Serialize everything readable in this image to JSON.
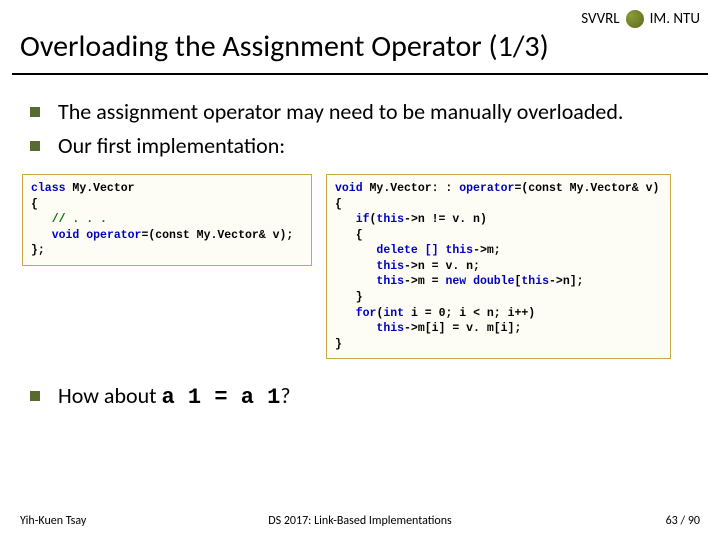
{
  "header": {
    "left_label": "SVVRL",
    "right_label": "IM. NTU"
  },
  "title": "Overloading the Assignment Operator (1/3)",
  "bullets": {
    "b1": "The assignment operator may need to be manually overloaded.",
    "b2": "Our first implementation:"
  },
  "code_left": {
    "line1_kw": "class",
    "line1_rest": " My.Vector",
    "line2": "{",
    "line3_pre": "   ",
    "line3_comment": "// . . .",
    "line4_pre": "   ",
    "line4_kw1": "void",
    "line4_mid": " ",
    "line4_kw2": "operator",
    "line4_rest": "=(const My.Vector& v);",
    "line5": "};"
  },
  "code_right": {
    "l1_kw1": "void",
    "l1_mid1": " My.Vector: : ",
    "l1_kw2": "operator",
    "l1_rest": "=(const My.Vector& v)",
    "l2": "{",
    "l3_pre": "   ",
    "l3_kw": "if",
    "l3_mid": "(",
    "l3_kw2": "this",
    "l3_rest": "->n != v. n)",
    "l4": "   {",
    "l5_pre": "      ",
    "l5_kw1": "delete []",
    "l5_mid": " ",
    "l5_kw2": "this",
    "l5_rest": "->m;",
    "l6_pre": "      ",
    "l6_kw": "this",
    "l6_rest": "->n = v. n;",
    "l7_pre": "      ",
    "l7_kw1": "this",
    "l7_mid": "->m = ",
    "l7_kw2": "new",
    "l7_mid2": " ",
    "l7_kw3": "double",
    "l7_mid3": "[",
    "l7_kw4": "this",
    "l7_rest": "->n];",
    "l8": "   }",
    "l9_pre": "   ",
    "l9_kw1": "for",
    "l9_mid1": "(",
    "l9_kw2": "int",
    "l9_rest": " i = 0; i < n; i++)",
    "l10_pre": "      ",
    "l10_kw": "this",
    "l10_rest": "->m[i] = v. m[i];",
    "l11": "}"
  },
  "question": {
    "prefix": "How about ",
    "code": "a 1 = a 1",
    "suffix": "?"
  },
  "footer": {
    "left": "Yih-Kuen Tsay",
    "center": "DS 2017: Link-Based Implementations",
    "page_current": "63",
    "page_sep": " / ",
    "page_total": "90"
  },
  "colors": {
    "bullet": "#556b2f",
    "code_border": "#c9a84a",
    "kw_blue": "#0000c0",
    "kw_green": "#007000",
    "kw_red": "#b00000"
  }
}
